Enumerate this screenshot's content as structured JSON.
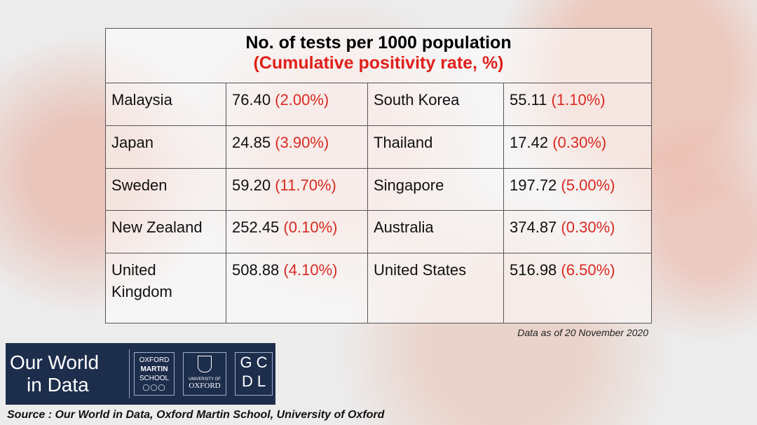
{
  "table": {
    "title": "No. of tests per 1000 population",
    "subtitle": "(Cumulative positivity rate, %)",
    "rows": [
      {
        "country1": "Malaysia",
        "tests1": "76.40 ",
        "rate1": "(2.00%)",
        "country2": "South Korea",
        "tests2": "55.11",
        "rate2": "(1.10%)"
      },
      {
        "country1": "Japan",
        "tests1": "24.85",
        "rate1": "(3.90%)",
        "country2": "Thailand",
        "tests2": "17.42",
        "rate2": "(0.30%)"
      },
      {
        "country1": "Sweden",
        "tests1": "59.20",
        "rate1": "(11.70%)",
        "country2": "Singapore",
        "tests2": "197.72",
        "rate2": "(5.00%)"
      },
      {
        "country1": "New Zealand",
        "tests1": "252.45",
        "rate1": "(0.10%)",
        "country2": "Australia",
        "tests2": "374.87",
        "rate2": "(0.30%)"
      },
      {
        "country1": "United Kingdom",
        "tests1": "508.88",
        "rate1": "(4.10%)",
        "country2": "United States",
        "tests2": "516.98",
        "rate2": "(6.50%)"
      }
    ]
  },
  "note": "Data as of 20 November 2020",
  "logos": {
    "owid_line1": "Our World",
    "owid_line2": "in Data",
    "oms_line1": "OXFORD",
    "oms_line2": "MARTIN",
    "oms_line3": "SCHOOL",
    "oxford_small": "UNIVERSITY OF",
    "oxford_big": "OXFORD",
    "gcdl_line1": "GC",
    "gcdl_line2": "DL"
  },
  "source": "Source : Our World in Data, Oxford Martin School, University of Oxford",
  "colors": {
    "accent_red": "#e0201b",
    "logo_bg": "#1d2d4c"
  }
}
